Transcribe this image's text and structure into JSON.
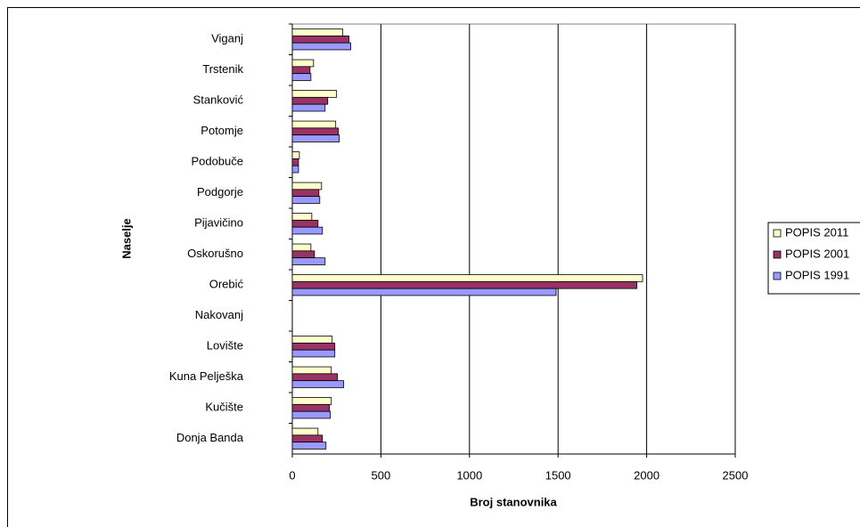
{
  "chart_data": {
    "type": "bar",
    "orientation": "horizontal",
    "x_label": "Broj stanovnika",
    "y_label": "Naselje",
    "categories": [
      "Viganj",
      "Trstenik",
      "Stanković",
      "Potomje",
      "Podobuče",
      "Podgorje",
      "Pijavičino",
      "Oskorušno",
      "Orebić",
      "Nakovanj",
      "Lovište",
      "Kuna Pelješka",
      "Kučište",
      "Donja Banda"
    ],
    "series": [
      {
        "name": "POPIS 2011",
        "color": "#ffffcc",
        "values": [
          285,
          120,
          250,
          245,
          40,
          165,
          110,
          105,
          1977,
          null,
          225,
          220,
          220,
          145
        ]
      },
      {
        "name": "POPIS 2001",
        "color": "#993366",
        "values": [
          320,
          100,
          200,
          260,
          35,
          150,
          145,
          125,
          1945,
          null,
          240,
          255,
          210,
          170
        ]
      },
      {
        "name": "POPIS 1991",
        "color": "#9999ff",
        "values": [
          330,
          105,
          185,
          265,
          35,
          155,
          170,
          185,
          1489,
          null,
          240,
          290,
          215,
          190
        ]
      }
    ],
    "xlim": [
      0,
      2500
    ],
    "xticks": [
      0,
      500,
      1000,
      1500,
      2000,
      2500
    ],
    "grid": true,
    "legend": "right"
  }
}
